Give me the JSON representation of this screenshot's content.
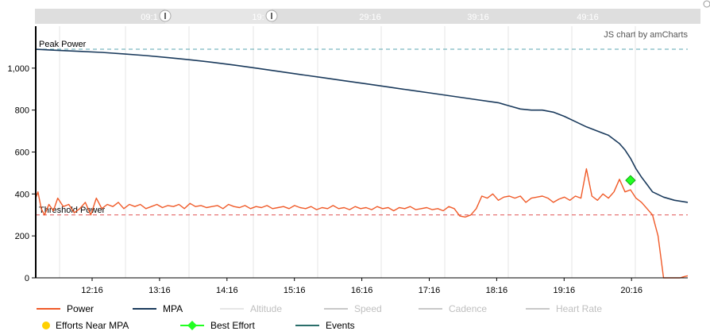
{
  "chart_data": {
    "type": "line",
    "credit": "JS chart by amCharts",
    "x_tick_labels": [
      "12:16",
      "13:16",
      "14:16",
      "15:16",
      "16:16",
      "17:16",
      "18:16",
      "19:16",
      "20:16"
    ],
    "scrollbar_labels": [
      "09:1",
      "19:",
      "29:16",
      "39:16",
      "49:16"
    ],
    "y_ticks": [
      0,
      200,
      400,
      600,
      800,
      1000
    ],
    "y_tick_labels": [
      "0",
      "200",
      "400",
      "600",
      "800",
      "1,000"
    ],
    "ylim": [
      0,
      1200
    ],
    "xlim_minutes": [
      0,
      592
    ],
    "guides": [
      {
        "label": "Peak Power",
        "value": 1090,
        "color": "#5aa6b0"
      },
      {
        "label": "Threshold Power",
        "value": 300,
        "color": "#e05050"
      }
    ],
    "series": [
      {
        "name": "Power",
        "color": "#f05a28",
        "x_minutes": [
          0,
          2,
          5,
          8,
          12,
          16,
          20,
          25,
          30,
          35,
          40,
          45,
          50,
          55,
          60,
          65,
          70,
          75,
          80,
          85,
          90,
          95,
          100,
          105,
          110,
          115,
          120,
          125,
          130,
          135,
          140,
          145,
          150,
          155,
          160,
          165,
          170,
          175,
          180,
          185,
          190,
          195,
          200,
          205,
          210,
          215,
          220,
          225,
          230,
          235,
          240,
          245,
          250,
          255,
          260,
          265,
          270,
          275,
          280,
          285,
          290,
          295,
          300,
          305,
          310,
          315,
          320,
          325,
          330,
          335,
          340,
          345,
          350,
          355,
          360,
          365,
          370,
          375,
          380,
          385,
          390,
          395,
          400,
          405,
          410,
          415,
          420,
          425,
          430,
          435,
          440,
          445,
          450,
          455,
          460,
          465,
          470,
          475,
          480,
          485,
          490,
          495,
          500,
          505,
          510,
          515,
          520,
          525,
          530,
          535,
          540,
          545,
          550,
          555,
          560,
          565,
          570,
          575,
          580,
          585,
          588,
          592
        ],
        "values": [
          380,
          410,
          330,
          300,
          350,
          320,
          380,
          340,
          350,
          310,
          330,
          360,
          300,
          380,
          330,
          350,
          340,
          360,
          330,
          350,
          340,
          350,
          330,
          340,
          350,
          335,
          345,
          340,
          350,
          330,
          355,
          340,
          345,
          335,
          340,
          345,
          330,
          350,
          340,
          335,
          345,
          330,
          340,
          335,
          345,
          330,
          335,
          340,
          330,
          345,
          335,
          330,
          340,
          325,
          335,
          330,
          345,
          330,
          335,
          325,
          340,
          330,
          335,
          325,
          340,
          330,
          335,
          320,
          335,
          330,
          340,
          325,
          330,
          335,
          325,
          330,
          320,
          340,
          330,
          295,
          290,
          300,
          330,
          390,
          380,
          400,
          370,
          385,
          390,
          380,
          390,
          360,
          380,
          385,
          390,
          380,
          360,
          375,
          385,
          370,
          390,
          380,
          520,
          390,
          370,
          400,
          380,
          410,
          470,
          410,
          420,
          380,
          360,
          330,
          300,
          200,
          0,
          0,
          0,
          0,
          5,
          10
        ],
        "unit": "W"
      },
      {
        "name": "MPA",
        "color": "#1a3a5c",
        "x_minutes": [
          0,
          20,
          40,
          60,
          80,
          100,
          120,
          140,
          160,
          180,
          200,
          220,
          240,
          260,
          280,
          300,
          320,
          340,
          360,
          380,
          400,
          420,
          430,
          440,
          450,
          460,
          470,
          480,
          490,
          500,
          510,
          520,
          530,
          535,
          540,
          545,
          550,
          555,
          560,
          570,
          580,
          592
        ],
        "values": [
          1090,
          1085,
          1080,
          1075,
          1068,
          1060,
          1050,
          1040,
          1028,
          1015,
          1000,
          985,
          970,
          955,
          940,
          925,
          910,
          895,
          880,
          865,
          850,
          835,
          820,
          805,
          800,
          800,
          790,
          770,
          745,
          720,
          700,
          680,
          640,
          610,
          570,
          520,
          480,
          445,
          410,
          385,
          370,
          360
        ],
        "unit": "W"
      }
    ],
    "best_effort": {
      "name": "Best Effort",
      "x_minutes": 540,
      "value": 465,
      "color": "#22ff22"
    },
    "legend": [
      {
        "label": "Power",
        "color": "#f05a28",
        "kind": "line",
        "enabled": true
      },
      {
        "label": "MPA",
        "color": "#1a3a5c",
        "kind": "line",
        "enabled": true
      },
      {
        "label": "Altitude",
        "color": "#e6e6e6",
        "kind": "line",
        "enabled": false
      },
      {
        "label": "Speed",
        "color": "#c8c8c8",
        "kind": "line",
        "enabled": false
      },
      {
        "label": "Cadence",
        "color": "#c8c8c8",
        "kind": "line",
        "enabled": false
      },
      {
        "label": "Heart Rate",
        "color": "#c8c8c8",
        "kind": "line",
        "enabled": false
      },
      {
        "label": "Efforts Near MPA",
        "color": "#ffd000",
        "kind": "dot",
        "enabled": true
      },
      {
        "label": "Best Effort",
        "color": "#22ff22",
        "kind": "diamond",
        "enabled": true
      },
      {
        "label": "Events",
        "color": "#2a6e6a",
        "kind": "line",
        "enabled": true
      }
    ]
  }
}
